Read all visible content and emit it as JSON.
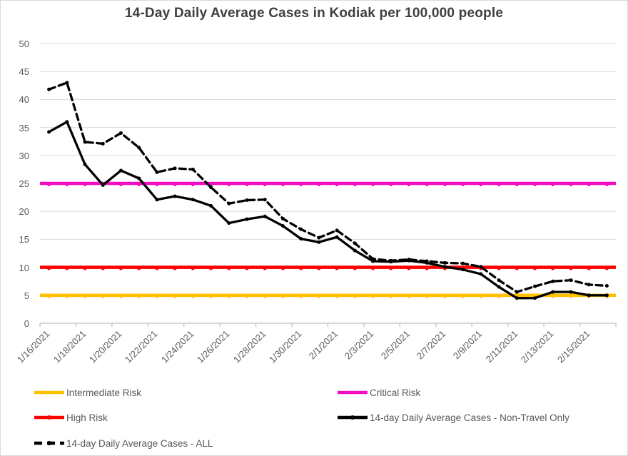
{
  "chart_data": {
    "type": "line",
    "title": "14-Day Daily Average Cases in Kodiak per 100,000 people",
    "xlabel": "",
    "ylabel": "",
    "ylim": [
      0,
      50
    ],
    "yticks": [
      0,
      5,
      10,
      15,
      20,
      25,
      30,
      35,
      40,
      45,
      50
    ],
    "grid": "horizontal",
    "x_label_every": 2,
    "x": [
      "1/16/2021",
      "1/17/2021",
      "1/18/2021",
      "1/19/2021",
      "1/20/2021",
      "1/21/2021",
      "1/22/2021",
      "1/23/2021",
      "1/24/2021",
      "1/25/2021",
      "1/26/2021",
      "1/27/2021",
      "1/28/2021",
      "1/29/2021",
      "1/30/2021",
      "1/31/2021",
      "2/1/2021",
      "2/2/2021",
      "2/3/2021",
      "2/4/2021",
      "2/5/2021",
      "2/6/2021",
      "2/7/2021",
      "2/8/2021",
      "2/9/2021",
      "2/10/2021",
      "2/11/2021",
      "2/12/2021",
      "2/13/2021",
      "2/14/2021",
      "2/15/2021",
      "2/16/2021"
    ],
    "series": [
      {
        "name": "14-day Daily Average Cases - Non-Travel Only",
        "style": "solid",
        "marker": "dot",
        "color": "#000000",
        "values": [
          34.2,
          36.0,
          28.4,
          24.7,
          27.3,
          25.9,
          22.1,
          22.7,
          22.1,
          21.0,
          17.9,
          18.6,
          19.1,
          17.4,
          15.1,
          14.5,
          15.4,
          13.0,
          11.1,
          11.0,
          11.2,
          10.8,
          10.1,
          9.6,
          8.8,
          6.5,
          4.5,
          4.5,
          5.6,
          5.6,
          5.0,
          5.0
        ]
      },
      {
        "name": "14-day Daily Average Cases - ALL",
        "style": "dashed",
        "marker": "dot",
        "color": "#000000",
        "values": [
          41.8,
          43.0,
          32.4,
          32.1,
          34.0,
          31.4,
          27.0,
          27.7,
          27.5,
          24.3,
          21.4,
          22.0,
          22.1,
          18.7,
          16.8,
          15.3,
          16.6,
          14.3,
          11.5,
          11.2,
          11.4,
          11.1,
          10.8,
          10.7,
          10.1,
          7.7,
          5.6,
          6.6,
          7.5,
          7.7,
          6.9,
          6.7
        ]
      }
    ],
    "reference_lines": [
      {
        "name": "Intermediate Risk",
        "value": 5,
        "color": "#FFC000"
      },
      {
        "name": "High Risk",
        "value": 10,
        "color": "#FF0000"
      },
      {
        "name": "Critical Risk",
        "value": 25,
        "color": "#F20DC4"
      }
    ],
    "legend_position": "bottom"
  },
  "legend": {
    "columns": [
      {
        "items": [
          {
            "label": "Intermediate Risk",
            "color": "#FFC000",
            "style": "line"
          },
          {
            "label": "High Risk",
            "color": "#FF0000",
            "style": "line-marker"
          },
          {
            "label": "14-day Daily Average Cases - ALL",
            "color": "#000000",
            "style": "dash-marker"
          }
        ]
      },
      {
        "items": [
          {
            "label": "Critical Risk",
            "color": "#F20DC4",
            "style": "line"
          },
          {
            "label": "14-day Daily Average Cases - Non-Travel Only",
            "color": "#000000",
            "style": "line-marker"
          }
        ]
      }
    ]
  },
  "palette": {
    "title_text": "#3f3f3f",
    "axis_text": "#595959",
    "gridline": "#d9d9d9",
    "axis_line": "#bfbfbf"
  }
}
